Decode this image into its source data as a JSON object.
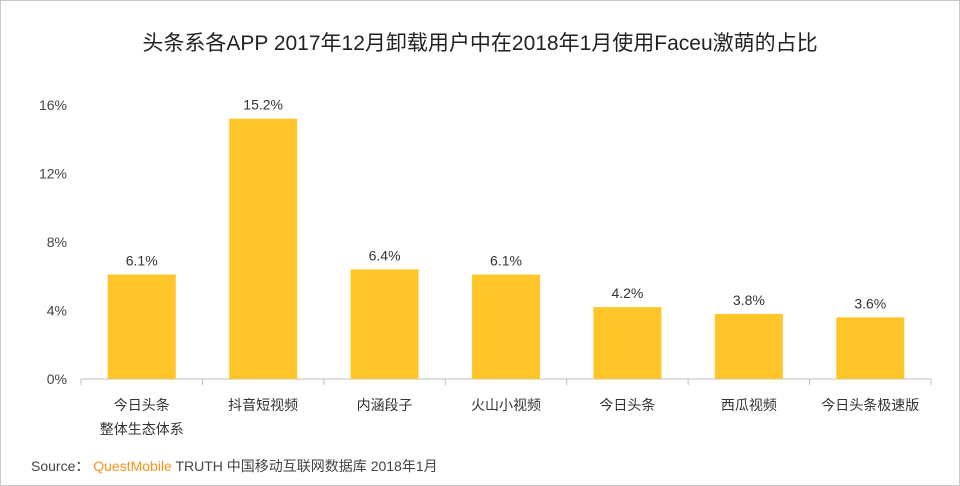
{
  "chart_data": {
    "type": "bar",
    "title": "头条系各APP 2017年12月卸载用户中在2018年1月使用Faceu激萌的占比",
    "categories": [
      [
        "今日头条",
        "整体生态体系"
      ],
      [
        "抖音短视频"
      ],
      [
        "内涵段子"
      ],
      [
        "火山小视频"
      ],
      [
        "今日头条"
      ],
      [
        "西瓜视频"
      ],
      [
        "今日头条极速版"
      ]
    ],
    "values": [
      6.1,
      15.2,
      6.4,
      6.1,
      4.2,
      3.8,
      3.6
    ],
    "data_labels": [
      "6.1%",
      "15.2%",
      "6.4%",
      "6.1%",
      "4.2%",
      "3.8%",
      "3.6%"
    ],
    "yticks": [
      0,
      4,
      8,
      12,
      16
    ],
    "ytick_labels": [
      "0%",
      "4%",
      "8%",
      "12%",
      "16%"
    ],
    "ylim": [
      0,
      16
    ],
    "xlabel": "",
    "ylabel": "",
    "grid": false,
    "bar_color": "#FFC52A"
  },
  "source": {
    "prefix": "Source：",
    "brand": "QuestMobile",
    "text": "TRUTH 中国移动互联网数据库 2018年1月"
  }
}
